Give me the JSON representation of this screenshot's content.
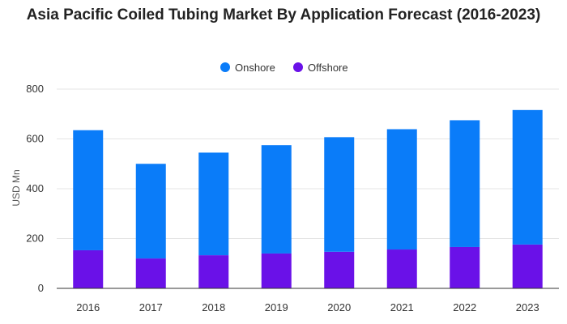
{
  "chart_data": {
    "type": "bar",
    "stacked": true,
    "title": "Asia Pacific Coiled Tubing Market By Application Forecast (2016-2023)",
    "xlabel": "",
    "ylabel": "USD Mn",
    "ylim": [
      0,
      800
    ],
    "yticks": [
      "0",
      "200",
      "400",
      "600",
      "800"
    ],
    "grid": true,
    "legend_position": "top-center",
    "categories": [
      "2016",
      "2017",
      "2018",
      "2019",
      "2020",
      "2021",
      "2022",
      "2023"
    ],
    "series": [
      {
        "name": "Offshore",
        "color": "#6a11e8",
        "values": [
          153,
          120,
          133,
          140,
          147,
          156,
          166,
          176
        ]
      },
      {
        "name": "Onshore",
        "color": "#0a7cf9",
        "values": [
          482,
          380,
          412,
          435,
          460,
          483,
          509,
          540
        ]
      }
    ],
    "legend_order": [
      "Onshore",
      "Offshore"
    ]
  }
}
